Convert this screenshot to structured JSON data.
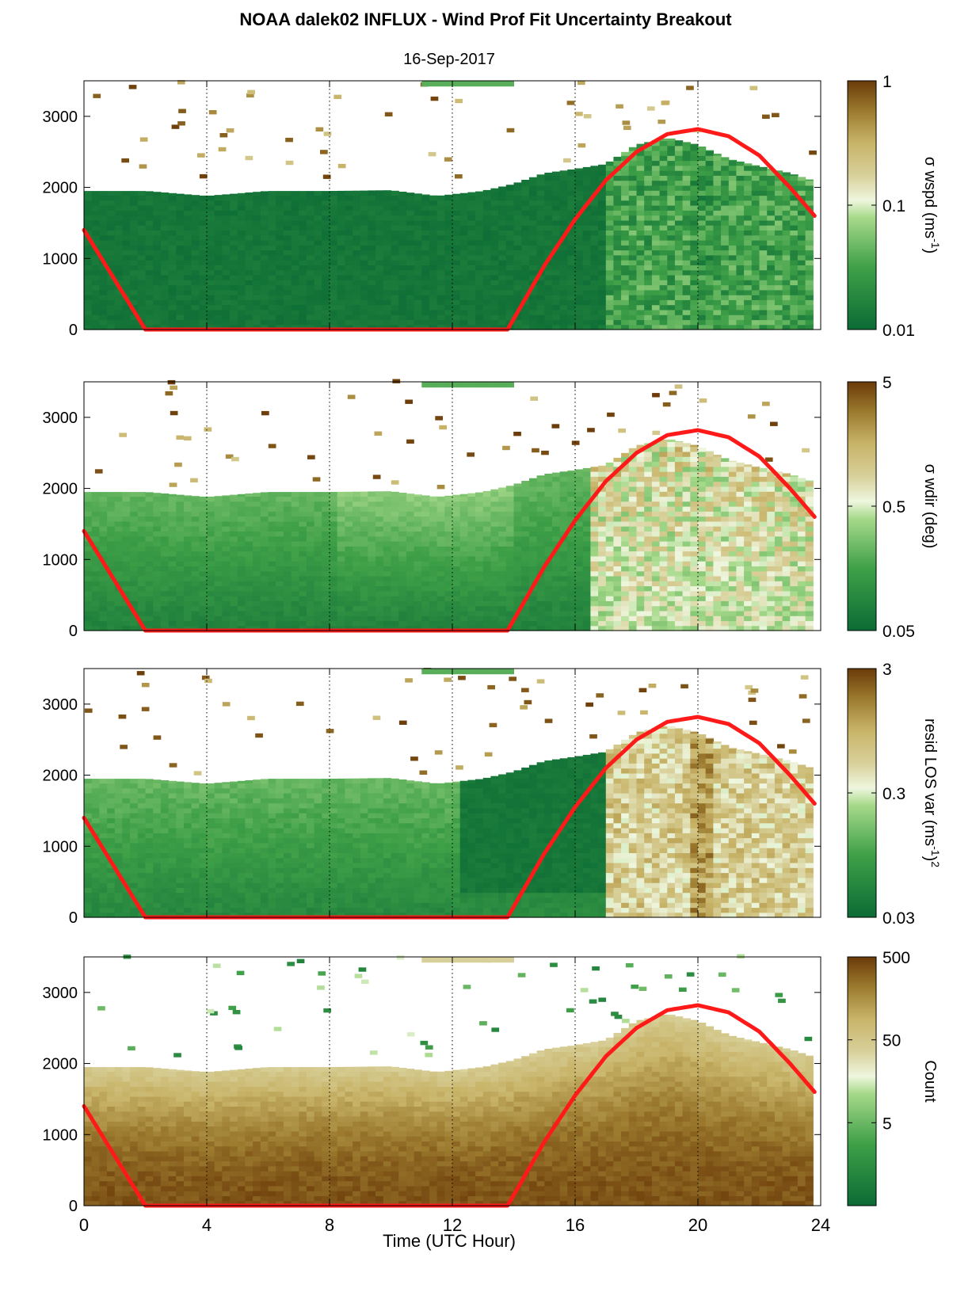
{
  "figure": {
    "title": "NOAA dalek02 INFLUX - Wind Prof Fit Uncertainty Breakout",
    "subtitle": "16-Sep-2017",
    "xlabel": "Time (UTC Hour)"
  },
  "colors": {
    "low": "#0b6b35",
    "mid_green": "#3fa048",
    "light": "#eef6de",
    "tan": "#c8b469",
    "high": "#6b3a08",
    "curve": "#ff1a1a"
  },
  "chart_data": [
    {
      "type": "heatmap",
      "panel": "wspd",
      "colorbar_label": "σ wspd (ms",
      "colorbar_label_sup": "-1",
      "colorbar_label_tail": ")",
      "colorbar_ticks": [
        "1",
        "0.1",
        "0.01"
      ],
      "colorbar_range": [
        0.01,
        1
      ],
      "colorbar_scale": "log",
      "x": [
        0,
        24
      ],
      "xlim": [
        0,
        24
      ],
      "xticks": [
        "0",
        "4",
        "8",
        "12",
        "16",
        "20",
        "24"
      ],
      "ylim": [
        0,
        3500
      ],
      "yticks": [
        "0",
        "1000",
        "2000",
        "3000"
      ],
      "dotted_vlines": [
        4,
        8,
        12,
        16,
        20
      ],
      "boundary_height": [
        [
          0,
          1950
        ],
        [
          2,
          1950
        ],
        [
          4,
          1880
        ],
        [
          6,
          1950
        ],
        [
          8,
          1950
        ],
        [
          10,
          1960
        ],
        [
          11.5,
          1880
        ],
        [
          13,
          1950
        ],
        [
          14,
          2050
        ],
        [
          15,
          2200
        ],
        [
          16,
          2260
        ],
        [
          17,
          2330
        ],
        [
          18,
          2600
        ],
        [
          19,
          2700
        ],
        [
          20,
          2600
        ],
        [
          21,
          2400
        ],
        [
          22,
          2300
        ],
        [
          23,
          2200
        ],
        [
          23.7,
          2100
        ]
      ],
      "pattern": "dark green (~0.01) below boundary before 17 UTC; mixed green (~0.03-0.1) after 17 UTC",
      "overlay_curve": [
        [
          0,
          1400
        ],
        [
          2,
          0
        ],
        [
          13.8,
          0
        ],
        [
          15,
          900
        ],
        [
          16,
          1550
        ],
        [
          17,
          2100
        ],
        [
          18,
          2500
        ],
        [
          19,
          2750
        ],
        [
          20,
          2820
        ],
        [
          21,
          2720
        ],
        [
          22,
          2450
        ],
        [
          23,
          2000
        ],
        [
          23.8,
          1600
        ]
      ]
    },
    {
      "type": "heatmap",
      "panel": "wdir",
      "colorbar_label": "σ wdir (deg)",
      "colorbar_ticks": [
        "5",
        "0.5",
        "0.05"
      ],
      "colorbar_range": [
        0.05,
        5
      ],
      "colorbar_scale": "log",
      "x": [
        0,
        24
      ],
      "xlim": [
        0,
        24
      ],
      "xticks": [
        "0",
        "4",
        "8",
        "12",
        "16",
        "20",
        "24"
      ],
      "ylim": [
        0,
        3500
      ],
      "yticks": [
        "0",
        "1000",
        "2000",
        "3000"
      ],
      "dotted_vlines": [
        4,
        8,
        12,
        16,
        20
      ],
      "boundary_height": [
        [
          0,
          1950
        ],
        [
          2,
          1950
        ],
        [
          4,
          1880
        ],
        [
          6,
          1950
        ],
        [
          8,
          1950
        ],
        [
          10,
          1960
        ],
        [
          11.5,
          1880
        ],
        [
          13,
          1950
        ],
        [
          14,
          2050
        ],
        [
          15,
          2200
        ],
        [
          16,
          2260
        ],
        [
          17,
          2330
        ],
        [
          18,
          2600
        ],
        [
          19,
          2700
        ],
        [
          20,
          2600
        ],
        [
          21,
          2400
        ],
        [
          22,
          2300
        ],
        [
          23,
          2200
        ],
        [
          23.7,
          2100
        ]
      ],
      "pattern": "green gradient (~0.05-0.3) before 17 UTC; light to tan (~0.5-3) after 17 UTC, brown near top late day",
      "overlay_curve": [
        [
          0,
          1400
        ],
        [
          2,
          0
        ],
        [
          13.8,
          0
        ],
        [
          15,
          900
        ],
        [
          16,
          1550
        ],
        [
          17,
          2100
        ],
        [
          18,
          2500
        ],
        [
          19,
          2750
        ],
        [
          20,
          2820
        ],
        [
          21,
          2720
        ],
        [
          22,
          2450
        ],
        [
          23,
          2000
        ],
        [
          23.8,
          1600
        ]
      ]
    },
    {
      "type": "heatmap",
      "panel": "resid",
      "colorbar_label": "resid LOS var (ms",
      "colorbar_label_sup": "-1",
      "colorbar_label_tail": ")",
      "colorbar_label_sup2": "2",
      "colorbar_ticks": [
        "3",
        "0.3",
        "0.03"
      ],
      "colorbar_range": [
        0.03,
        3
      ],
      "colorbar_scale": "log",
      "x": [
        0,
        24
      ],
      "xlim": [
        0,
        24
      ],
      "xticks": [
        "0",
        "4",
        "8",
        "12",
        "16",
        "20",
        "24"
      ],
      "ylim": [
        0,
        3500
      ],
      "yticks": [
        "0",
        "1000",
        "2000",
        "3000"
      ],
      "dotted_vlines": [
        4,
        8,
        12,
        16,
        20
      ],
      "boundary_height": [
        [
          0,
          1950
        ],
        [
          2,
          1950
        ],
        [
          4,
          1880
        ],
        [
          6,
          1950
        ],
        [
          8,
          1950
        ],
        [
          10,
          1960
        ],
        [
          11.5,
          1880
        ],
        [
          13,
          1950
        ],
        [
          14,
          2050
        ],
        [
          15,
          2200
        ],
        [
          16,
          2260
        ],
        [
          17,
          2330
        ],
        [
          18,
          2600
        ],
        [
          19,
          2700
        ],
        [
          20,
          2600
        ],
        [
          21,
          2400
        ],
        [
          22,
          2300
        ],
        [
          23,
          2200
        ],
        [
          23.7,
          2100
        ]
      ],
      "pattern": "green (~0.05-0.2) before 17 UTC with dark band 12-17 UTC; light-tan to brown (~0.3-3) after 17 UTC",
      "overlay_curve": [
        [
          0,
          1400
        ],
        [
          2,
          0
        ],
        [
          13.8,
          0
        ],
        [
          15,
          900
        ],
        [
          16,
          1550
        ],
        [
          17,
          2100
        ],
        [
          18,
          2500
        ],
        [
          19,
          2750
        ],
        [
          20,
          2820
        ],
        [
          21,
          2720
        ],
        [
          22,
          2450
        ],
        [
          23,
          2000
        ],
        [
          23.8,
          1600
        ]
      ]
    },
    {
      "type": "heatmap",
      "panel": "count",
      "colorbar_label": "Count",
      "colorbar_ticks": [
        "500",
        "50",
        "5"
      ],
      "colorbar_range": [
        0.5,
        500
      ],
      "colorbar_scale": "log",
      "x": [
        0,
        24
      ],
      "xlim": [
        0,
        24
      ],
      "xticks": [
        "0",
        "4",
        "8",
        "12",
        "16",
        "20",
        "24"
      ],
      "ylim": [
        0,
        3500
      ],
      "yticks": [
        "0",
        "1000",
        "2000",
        "3000"
      ],
      "dotted_vlines": [
        4,
        8,
        12,
        16,
        20
      ],
      "boundary_height": [
        [
          0,
          1950
        ],
        [
          2,
          1950
        ],
        [
          4,
          1880
        ],
        [
          6,
          1950
        ],
        [
          8,
          1950
        ],
        [
          10,
          1960
        ],
        [
          11.5,
          1880
        ],
        [
          13,
          1950
        ],
        [
          14,
          2050
        ],
        [
          15,
          2200
        ],
        [
          16,
          2260
        ],
        [
          17,
          2330
        ],
        [
          18,
          2600
        ],
        [
          19,
          2700
        ],
        [
          20,
          2600
        ],
        [
          21,
          2400
        ],
        [
          22,
          2300
        ],
        [
          23,
          2200
        ],
        [
          23.7,
          2100
        ]
      ],
      "pattern": "dark brown (~500) near surface, lighter tan toward boundary; sparse green specks aloft",
      "overlay_curve": [
        [
          0,
          1400
        ],
        [
          2,
          0
        ],
        [
          13.8,
          0
        ],
        [
          15,
          900
        ],
        [
          16,
          1550
        ],
        [
          17,
          2100
        ],
        [
          18,
          2500
        ],
        [
          19,
          2750
        ],
        [
          20,
          2820
        ],
        [
          21,
          2720
        ],
        [
          22,
          2450
        ],
        [
          23,
          2000
        ],
        [
          23.8,
          1600
        ]
      ]
    }
  ]
}
